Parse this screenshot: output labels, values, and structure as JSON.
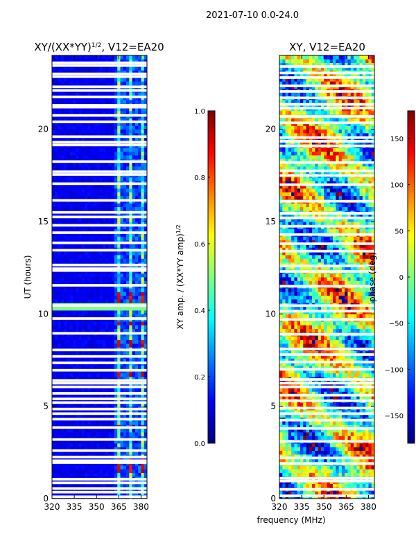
{
  "suptitle": "2021-07-10 0.0-24.0",
  "shared_xlabel": "frequency (MHz)",
  "colors": {
    "jet": [
      "#00007f",
      "#0000ff",
      "#007fff",
      "#00ffff",
      "#7fff7f",
      "#ffff00",
      "#ff7f00",
      "#ff0000",
      "#7f0000"
    ],
    "gap": "#ffffff",
    "frame": "#000000"
  },
  "chart_data": [
    {
      "type": "heatmap",
      "title_main": "XY/(XX*YY)",
      "title_sup": "1/2",
      "title_rest": ", V12=EA20",
      "xlabel": "",
      "ylabel": "UT (hours)",
      "x_ticks": [
        "320",
        "335",
        "350",
        "365",
        "380"
      ],
      "x_tick_values": [
        320,
        335,
        350,
        365,
        380
      ],
      "xlim": [
        320,
        384
      ],
      "y_ticks": [
        "0",
        "5",
        "10",
        "15",
        "20"
      ],
      "y_tick_values": [
        0,
        5,
        10,
        15,
        20
      ],
      "ylim": [
        0,
        24
      ],
      "colorbar": {
        "label": "XY amp. / (XX*YY amp)",
        "label_sup": "1/2",
        "ticks": [
          "0.0",
          "0.2",
          "0.4",
          "0.6",
          "0.8",
          "1.0"
        ],
        "tick_values": [
          0,
          0.2,
          0.4,
          0.6,
          0.8,
          1.0
        ],
        "range": [
          0,
          1
        ]
      },
      "value_model": {
        "background": 0.08,
        "active_band_mhz": [
          361,
          384
        ],
        "active_band_level": 0.45,
        "channel_stripe_mhz": [
          362,
          367,
          370,
          375,
          378,
          383
        ],
        "high_hours": [
          1.5,
          1.9,
          3.8,
          6.7,
          8.3,
          9.4,
          10.3,
          10.6,
          10.9
        ],
        "high_level": 0.85,
        "broadband_rfi_hours": [
          10.3
        ],
        "broadband_rfi_level": 0.5
      },
      "flagged_hours": [
        0.1,
        0.35,
        0.55,
        0.85,
        1.05,
        1.95,
        2.05,
        2.25,
        2.6,
        3.2,
        3.85,
        4.3,
        4.6,
        4.85,
        5.2,
        5.4,
        5.7,
        6.05,
        6.25,
        6.4,
        6.95,
        7.35,
        7.7,
        8.05,
        8.95,
        9.75,
        10.45,
        11.55,
        12.35,
        12.45,
        12.65,
        13.45,
        13.85,
        14.4,
        14.8,
        15.25,
        15.5,
        16.15,
        17.05,
        17.55,
        17.7,
        18.25,
        19.15,
        19.3,
        19.6,
        20.4,
        20.75,
        21.2,
        21.3,
        21.75,
        22.1,
        22.3,
        22.85,
        23.0,
        23.45,
        23.6
      ]
    },
    {
      "type": "heatmap",
      "title_main": "XY, V12=EA20",
      "xlabel": "",
      "ylabel": "",
      "x_ticks": [
        "320",
        "335",
        "350",
        "365",
        "380"
      ],
      "x_tick_values": [
        320,
        335,
        350,
        365,
        380
      ],
      "xlim": [
        320,
        384
      ],
      "y_ticks": [
        "0",
        "5",
        "10",
        "15",
        "20"
      ],
      "y_tick_values": [
        0,
        5,
        10,
        15,
        20
      ],
      "ylim": [
        0,
        24
      ],
      "colorbar": {
        "label": "phase (deg)",
        "ticks": [
          "−150",
          "−100",
          "−50",
          "0",
          "50",
          "100",
          "150"
        ],
        "tick_values": [
          -150,
          -100,
          -50,
          0,
          50,
          100,
          150
        ],
        "range": [
          -180,
          180
        ]
      },
      "value_model": {
        "description_kind": "phase wraps across full range",
        "range": [
          -180,
          180
        ]
      },
      "flagged_hours": [
        0.15,
        0.5,
        0.95,
        1.1,
        1.9,
        2.2,
        3.1,
        3.8,
        4.25,
        4.6,
        4.9,
        5.3,
        5.6,
        6.05,
        6.25,
        6.45,
        7.0,
        7.4,
        7.8,
        8.1,
        8.9,
        9.7,
        10.15,
        10.45,
        11.5,
        12.3,
        12.6,
        13.4,
        13.8,
        14.3,
        14.75,
        15.2,
        15.45,
        16.1,
        17.0,
        17.5,
        17.75,
        18.2,
        19.1,
        19.35,
        19.55,
        20.35,
        20.7,
        21.15,
        21.35,
        21.7,
        22.05,
        22.35,
        22.8,
        23.05,
        23.4
      ]
    }
  ]
}
